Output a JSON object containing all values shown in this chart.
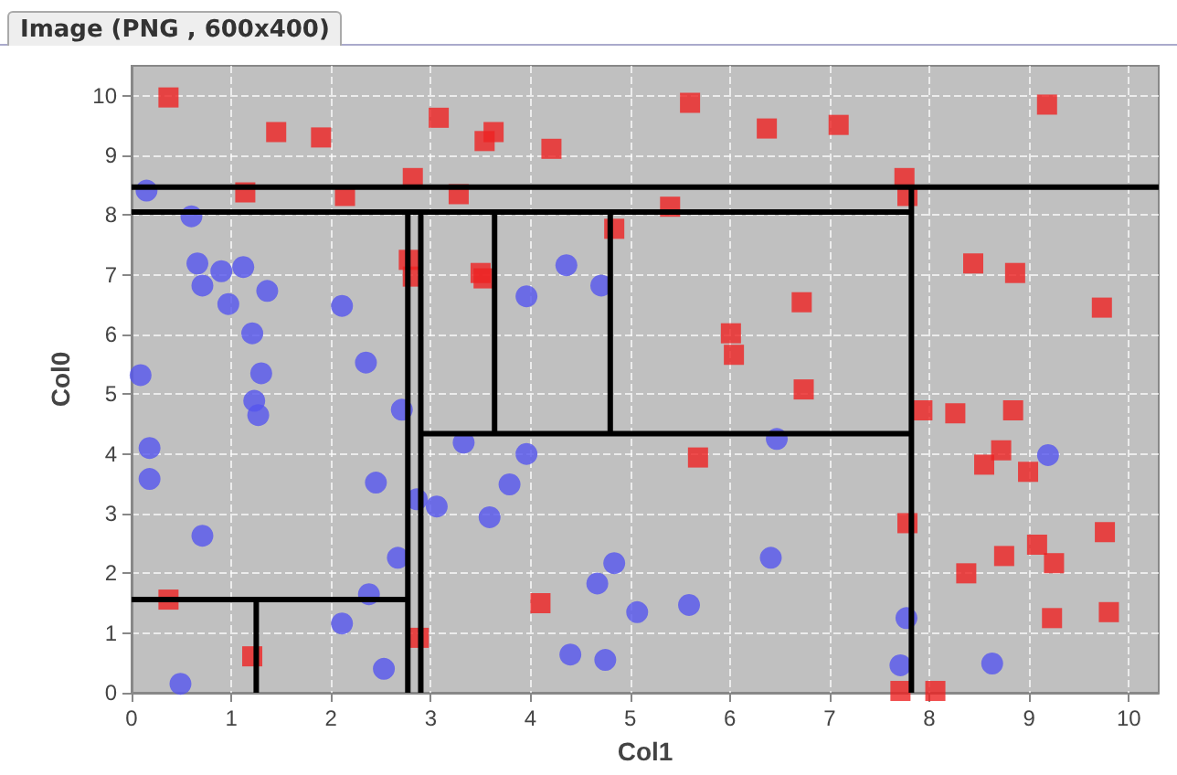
{
  "chart_data": {
    "type": "scatter",
    "xlabel": "Col1",
    "ylabel": "Col0",
    "annotations": [
      "Image (PNG , 600x400)"
    ],
    "xlim": [
      0,
      10.3
    ],
    "ylim": [
      0,
      10.5
    ],
    "xticks": [
      0,
      1,
      2,
      3,
      4,
      5,
      6,
      7,
      8,
      9,
      10
    ],
    "yticks": [
      0,
      1,
      2,
      3,
      4,
      5,
      6,
      7,
      8,
      9,
      10
    ],
    "grid": true,
    "series": [
      {
        "marker": "square",
        "color": "#ee2222",
        "x": [
          0.37,
          1.45,
          1.9,
          3.08,
          3.63,
          3.54,
          4.21,
          5.6,
          6.37,
          7.09,
          9.18,
          2.82,
          1.14,
          2.14,
          3.28,
          7.75,
          7.78,
          5.4,
          4.84,
          2.78,
          2.82,
          3.5,
          3.53,
          6.72,
          8.44,
          8.86,
          9.73,
          6.01,
          6.04,
          6.74,
          5.68,
          7.93,
          8.26,
          8.84,
          8.72,
          8.55,
          8.99,
          7.78,
          8.37,
          8.75,
          9.08,
          9.25,
          9.76,
          9.23,
          9.8,
          7.71,
          8.06,
          0.37,
          4.1,
          1.21,
          2.88
        ],
        "values": [
          9.97,
          9.39,
          9.3,
          9.63,
          9.39,
          9.24,
          9.11,
          9.88,
          9.45,
          9.51,
          9.85,
          8.62,
          8.38,
          8.32,
          8.35,
          8.62,
          8.32,
          8.14,
          7.77,
          7.25,
          6.97,
          7.03,
          6.94,
          6.54,
          7.19,
          7.03,
          6.45,
          6.02,
          5.66,
          5.08,
          3.94,
          4.73,
          4.68,
          4.73,
          4.06,
          3.82,
          3.7,
          2.84,
          2.0,
          2.29,
          2.48,
          2.17,
          2.69,
          1.25,
          1.35,
          0.03,
          0.03,
          1.56,
          1.5,
          0.61,
          0.92
        ]
      },
      {
        "marker": "circle",
        "color": "#5555ee",
        "x": [
          0.15,
          0.6,
          0.66,
          0.71,
          0.9,
          1.12,
          0.97,
          1.36,
          2.11,
          1.21,
          2.35,
          0.09,
          1.3,
          1.23,
          1.27,
          2.71,
          0.18,
          0.18,
          2.45,
          0.71,
          2.67,
          2.38,
          2.11,
          2.53,
          0.49,
          2.86,
          3.06,
          3.33,
          3.96,
          3.79,
          3.59,
          3.96,
          4.36,
          4.71,
          4.67,
          4.84,
          5.07,
          4.4,
          4.75,
          5.59,
          6.47,
          9.19,
          6.41,
          7.77,
          7.71,
          8.63
        ],
        "values": [
          8.41,
          7.98,
          7.19,
          6.82,
          7.06,
          7.13,
          6.51,
          6.73,
          6.48,
          6.02,
          5.53,
          5.32,
          5.35,
          4.89,
          4.65,
          4.74,
          4.1,
          3.58,
          3.52,
          2.63,
          2.26,
          1.65,
          1.16,
          0.4,
          0.15,
          3.24,
          3.12,
          4.19,
          4.0,
          3.49,
          2.94,
          6.64,
          7.16,
          6.82,
          1.83,
          2.17,
          1.35,
          0.64,
          0.55,
          1.47,
          4.25,
          3.98,
          2.26,
          1.25,
          0.46,
          0.49
        ]
      },
      {
        "type": "line",
        "marker": "none",
        "color": "#000000",
        "x": [
          0,
          10.3
        ],
        "values": [
          8.47,
          8.47
        ]
      },
      {
        "type": "line",
        "marker": "none",
        "color": "#000000",
        "x": [
          0,
          7.82
        ],
        "values": [
          8.05,
          8.05
        ]
      },
      {
        "type": "line",
        "marker": "none",
        "color": "#000000",
        "x": [
          2.77,
          2.77
        ],
        "values": [
          0,
          8.05
        ]
      },
      {
        "type": "line",
        "marker": "none",
        "color": "#000000",
        "x": [
          2.9,
          2.9
        ],
        "values": [
          0,
          8.05
        ]
      },
      {
        "type": "line",
        "marker": "none",
        "color": "#000000",
        "x": [
          0,
          2.77
        ],
        "values": [
          1.56,
          1.56
        ]
      },
      {
        "type": "line",
        "marker": "none",
        "color": "#000000",
        "x": [
          1.25,
          1.25
        ],
        "values": [
          0,
          1.56
        ]
      },
      {
        "type": "line",
        "marker": "none",
        "color": "#000000",
        "x": [
          2.9,
          7.82
        ],
        "values": [
          4.34,
          4.34
        ]
      },
      {
        "type": "line",
        "marker": "none",
        "color": "#000000",
        "x": [
          3.64,
          3.64
        ],
        "values": [
          4.34,
          8.05
        ]
      },
      {
        "type": "line",
        "marker": "none",
        "color": "#000000",
        "x": [
          4.8,
          4.8
        ],
        "values": [
          4.34,
          8.05
        ]
      },
      {
        "type": "line",
        "marker": "none",
        "color": "#000000",
        "x": [
          7.82,
          7.82
        ],
        "values": [
          0,
          8.47
        ]
      }
    ]
  }
}
